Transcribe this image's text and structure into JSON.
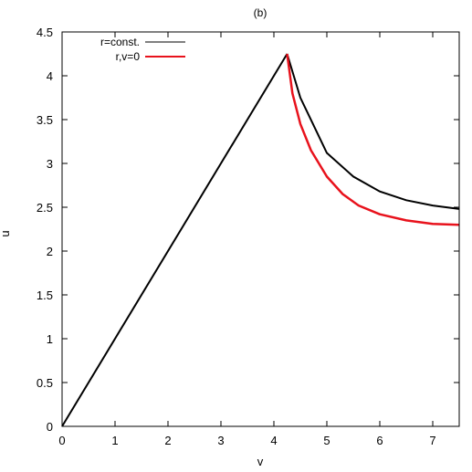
{
  "chart_data": {
    "type": "line",
    "title": "(b)",
    "xlabel": "v",
    "ylabel": "u",
    "xlim": [
      0,
      7.5
    ],
    "ylim": [
      0,
      4.5
    ],
    "xticks": [
      0,
      1,
      2,
      3,
      4,
      5,
      6,
      7
    ],
    "yticks": [
      0,
      0.5,
      1,
      1.5,
      2,
      2.5,
      3,
      3.5,
      4,
      4.5
    ],
    "xtick_labels": [
      "0",
      "1",
      "2",
      "3",
      "4",
      "5",
      "6",
      "7"
    ],
    "ytick_labels": [
      "0",
      "0.5",
      "1",
      "1.5",
      "2",
      "2.5",
      "3",
      "3.5",
      "4",
      "4.5"
    ],
    "grid": false,
    "legend_position": "top-left",
    "series": [
      {
        "name": "r=const.",
        "color": "#000000",
        "description_family": "contours of constant r",
        "apex": [
          4.25,
          4.25
        ],
        "left_boundary": [
          [
            0,
            0
          ],
          [
            4.25,
            4.25
          ]
        ],
        "right_boundary": [
          [
            4.25,
            4.25
          ],
          [
            4.5,
            3.75
          ],
          [
            5.0,
            3.12
          ],
          [
            5.5,
            2.85
          ],
          [
            6.0,
            2.68
          ],
          [
            6.5,
            2.58
          ],
          [
            7.0,
            2.52
          ],
          [
            7.5,
            2.48
          ]
        ],
        "count": 60
      },
      {
        "name": "r,v=0",
        "color": "#e8121c",
        "points": [
          [
            4.25,
            4.25
          ],
          [
            4.35,
            3.8
          ],
          [
            4.5,
            3.45
          ],
          [
            4.7,
            3.15
          ],
          [
            5.0,
            2.85
          ],
          [
            5.3,
            2.65
          ],
          [
            5.6,
            2.52
          ],
          [
            6.0,
            2.42
          ],
          [
            6.5,
            2.35
          ],
          [
            7.0,
            2.31
          ],
          [
            7.5,
            2.3
          ]
        ]
      }
    ]
  }
}
